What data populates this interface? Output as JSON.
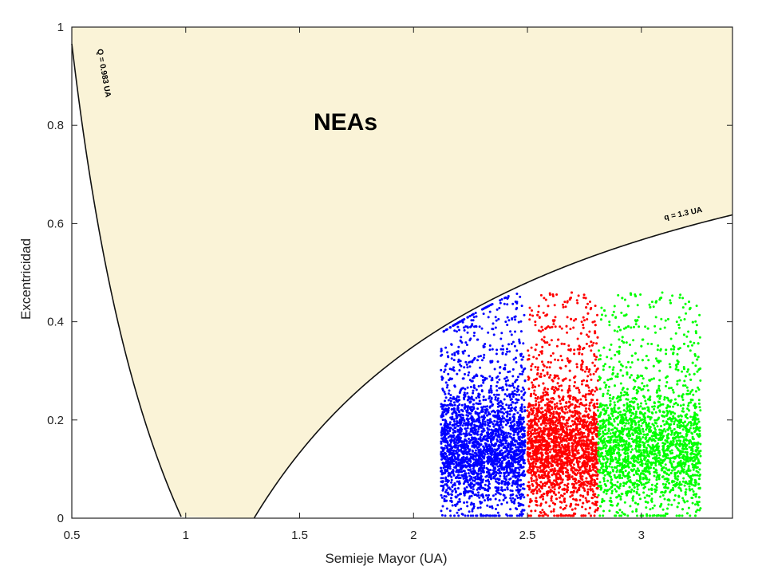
{
  "chart_data": {
    "type": "scatter",
    "title": "",
    "xlabel": "Semieje Mayor (UA)",
    "ylabel": "Excentricidad",
    "xlim": [
      0.5,
      3.4
    ],
    "ylim": [
      0,
      1
    ],
    "x_ticks": [
      "0.5",
      "1",
      "1.5",
      "2",
      "2.5",
      "3"
    ],
    "y_ticks": [
      "0",
      "0.2",
      "0.4",
      "0.6",
      "0.8",
      "1"
    ],
    "grid": false,
    "region": {
      "label": "NEAs",
      "color": "#faf3d7"
    },
    "curves": [
      {
        "name": "Q = 0.983 UA",
        "formula": "e = 1 - 0.983 / a"
      },
      {
        "name": "q = 1.3 UA",
        "formula": "e = 1 - 1.3 / a"
      }
    ],
    "series": [
      {
        "color": "#0000ff",
        "a_range": [
          2.12,
          2.49
        ],
        "e_peak_a": 2.35
      },
      {
        "color": "#ff0000",
        "a_range": [
          2.5,
          2.81
        ],
        "e_peak_a": 2.68
      },
      {
        "color": "#00ff00",
        "a_range": [
          2.81,
          3.26
        ],
        "e_peak_a": 3.1
      }
    ]
  }
}
